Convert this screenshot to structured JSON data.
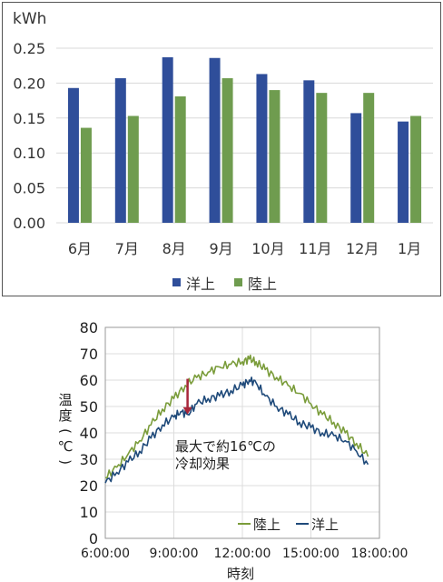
{
  "chart_data": [
    {
      "type": "bar",
      "ylabel": "kWh",
      "ylim": [
        0,
        0.25
      ],
      "yticks": [
        "0.00",
        "0.05",
        "0.10",
        "0.15",
        "0.20",
        "0.25"
      ],
      "grid": true,
      "legend_position": "bottom",
      "categories": [
        "6月",
        "7月",
        "8月",
        "9月",
        "10月",
        "11月",
        "12月",
        "1月"
      ],
      "series": [
        {
          "name": "洋上",
          "color": "#2f4e9a",
          "values": [
            0.193,
            0.207,
            0.237,
            0.236,
            0.213,
            0.204,
            0.157,
            0.145
          ]
        },
        {
          "name": "陸上",
          "color": "#6f9c4f",
          "values": [
            0.136,
            0.153,
            0.181,
            0.207,
            0.19,
            0.186,
            0.186,
            0.153
          ]
        }
      ]
    },
    {
      "type": "line",
      "xlabel": "時刻",
      "ylabel": "温度(℃)",
      "ylabel_chars": [
        "温",
        "度",
        "(",
        "℃",
        ")"
      ],
      "ylim": [
        0,
        80
      ],
      "yticks": [
        "0",
        "10",
        "20",
        "30",
        "40",
        "50",
        "60",
        "70",
        "80"
      ],
      "xlim": [
        6,
        18
      ],
      "xticks": [
        "6:00:00",
        "9:00:00",
        "12:00:00",
        "15:00:00",
        "18:00:00"
      ],
      "grid": true,
      "legend_position": "bottom-right",
      "annotation": {
        "lines": [
          "最大で約16℃の",
          "冷却効果"
        ],
        "arrow_x": 9.6,
        "arrow_from": 60.5,
        "arrow_to": 47,
        "arrow_color": "#a8263a"
      },
      "series": [
        {
          "name": "陸上",
          "color": "#7a9c3a",
          "x": [
            6.0,
            6.5,
            7.0,
            7.5,
            8.0,
            8.5,
            9.0,
            9.5,
            10.0,
            10.5,
            11.0,
            11.5,
            12.0,
            12.3,
            12.6,
            13.0,
            13.5,
            14.0,
            14.5,
            15.0,
            15.5,
            16.0,
            16.5,
            17.0,
            17.5
          ],
          "y": [
            23,
            27,
            32,
            37,
            43,
            49,
            53,
            58,
            61,
            63,
            65,
            66,
            67,
            68,
            67,
            64,
            61,
            58,
            55,
            51,
            47,
            44,
            40,
            36,
            31
          ]
        },
        {
          "name": "洋上",
          "color": "#1f4a7a",
          "x": [
            6.0,
            6.5,
            7.0,
            7.5,
            8.0,
            8.5,
            9.0,
            9.3,
            9.6,
            10.0,
            10.5,
            11.0,
            11.5,
            12.0,
            12.3,
            12.6,
            13.0,
            13.5,
            14.0,
            14.5,
            15.0,
            15.5,
            16.0,
            16.5,
            17.0,
            17.5
          ],
          "y": [
            21,
            25,
            29,
            33,
            38,
            43,
            46,
            48,
            47,
            51,
            53,
            54,
            56,
            58,
            60,
            59,
            54,
            50,
            47,
            44,
            42,
            40,
            39,
            37,
            33,
            28
          ]
        }
      ]
    }
  ]
}
